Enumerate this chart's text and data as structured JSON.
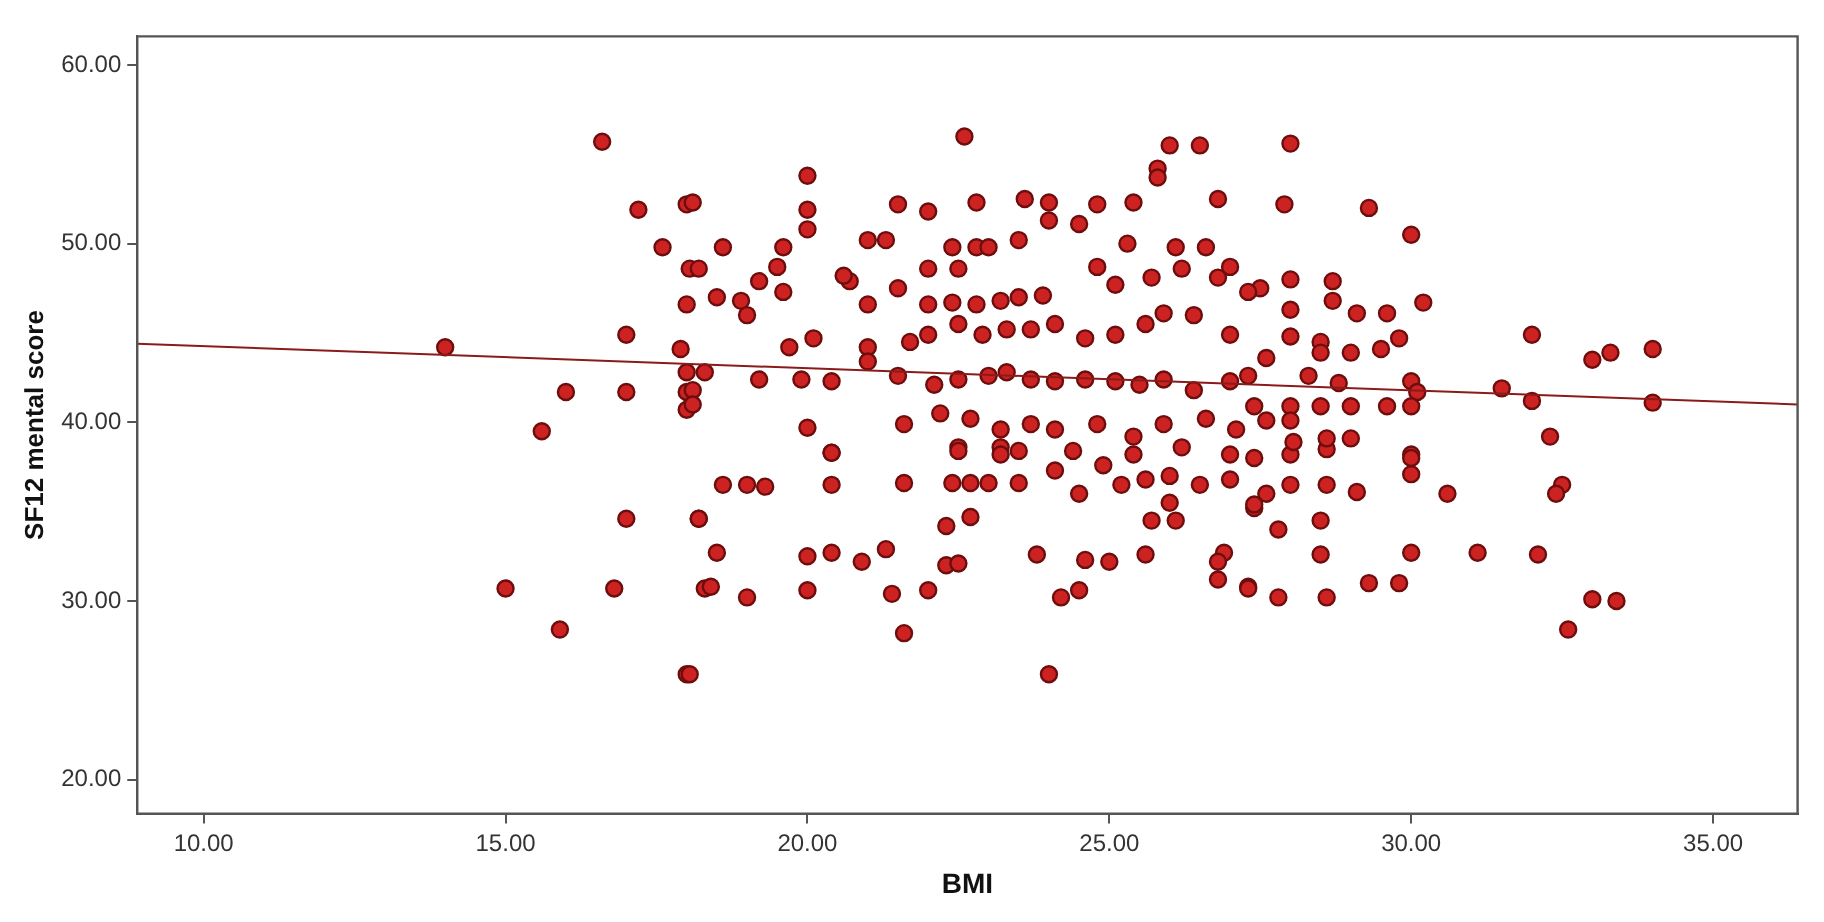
{
  "chart_data": {
    "type": "scatter",
    "xlabel": "BMI",
    "ylabel": "SF12 mental score",
    "xlim": [
      8.9,
      36.4
    ],
    "ylim": [
      18.1,
      61.6
    ],
    "xticks": [
      {
        "value": 10,
        "label": "10.00"
      },
      {
        "value": 15,
        "label": "15.00"
      },
      {
        "value": 20,
        "label": "20.00"
      },
      {
        "value": 25,
        "label": "25.00"
      },
      {
        "value": 30,
        "label": "30.00"
      },
      {
        "value": 35,
        "label": "35.00"
      }
    ],
    "yticks": [
      {
        "value": 20,
        "label": "20.00"
      },
      {
        "value": 30,
        "label": "30.00"
      },
      {
        "value": 40,
        "label": "40.00"
      },
      {
        "value": 50,
        "label": "50.00"
      },
      {
        "value": 60,
        "label": "60.00"
      }
    ],
    "grid": false,
    "legend": false,
    "marker": "circle",
    "series": [
      {
        "type": "scatter",
        "color": "#cc2222",
        "x": [
          14.0,
          16.6,
          17.2,
          18.0,
          17.6,
          18.05,
          18.0,
          17.0,
          17.9,
          18.0,
          16.0,
          17.0,
          18.0,
          18.0,
          15.6,
          17.0,
          18.2,
          15.0,
          16.8,
          18.3,
          15.9,
          18.0,
          20.4,
          18.6,
          19.0,
          19.3,
          20.4,
          21.6,
          22.4,
          22.7,
          23.0,
          23.5,
          18.2,
          22.3,
          22.7,
          18.5,
          20.0,
          20.4,
          20.9,
          21.3,
          22.3,
          22.5,
          23.8,
          24.6,
          25.0,
          25.6,
          26.9,
          26.8,
          26.8,
          27.3,
          18.4,
          19.0,
          20.0,
          21.4,
          22.0,
          24.2,
          24.5,
          21.6,
          24.0,
          18.05,
          30.0,
          30.0,
          30.6,
          32.5,
          32.4,
          27.8,
          28.5,
          28.5,
          30.0,
          31.1,
          32.1,
          29.3,
          29.8,
          27.3,
          27.8,
          28.6,
          33.0,
          33.4,
          32.6,
          28.0,
          28.6,
          27.4,
          28.6,
          29.1,
          28.0,
          27.6,
          27.4,
          28.0,
          27.9,
          29.3,
          30.0,
          30.2,
          32.0,
          33.0,
          33.3,
          34.0,
          34.0,
          31.5,
          32.0,
          32.3,
          30.0,
          30.1,
          28.0,
          28.7,
          27.5,
          28.0,
          28.7,
          29.1,
          29.6,
          29.8,
          29.5,
          29.0,
          28.5,
          28.5,
          28.0,
          27.6,
          28.3,
          28.8,
          27.4,
          28.0,
          28.5,
          29.0,
          29.6,
          30.0,
          27.6,
          28.0,
          28.05,
          28.6,
          29.0,
          30.0,
          22.6,
          26.0,
          26.5,
          25.8,
          25.8,
          20.0,
          20.0,
          20.0,
          18.1,
          21.5,
          22.0,
          22.8,
          23.6,
          24.0,
          24.8,
          25.4,
          26.8,
          24.0,
          24.5,
          21.0,
          21.3,
          22.4,
          22.8,
          23.0,
          23.5,
          18.6,
          19.6,
          18.2,
          19.5,
          19.2,
          20.7,
          20.6,
          21.5,
          22.0,
          22.5,
          18.5,
          18.9,
          19.6,
          21.0,
          22.0,
          22.4,
          22.8,
          23.2,
          23.5,
          23.9,
          19.0,
          24.8,
          25.3,
          26.1,
          26.6,
          27.0,
          25.1,
          25.7,
          26.2,
          26.8,
          22.0,
          22.5,
          22.9,
          23.3,
          23.7,
          24.1,
          24.6,
          25.1,
          25.6,
          25.9,
          26.4,
          27.0,
          27.3,
          19.7,
          20.1,
          21.0,
          21.7,
          18.3,
          19.2,
          19.9,
          20.4,
          21.0,
          21.5,
          22.1,
          22.5,
          23.0,
          23.3,
          23.7,
          24.1,
          24.6,
          25.1,
          25.5,
          25.9,
          26.4,
          27.0,
          27.3,
          21.6,
          22.2,
          22.7,
          23.2,
          23.7,
          24.1,
          24.8,
          25.4,
          25.9,
          26.6,
          27.1,
          20.4,
          22.5,
          23.2,
          24.4,
          25.4,
          26.2,
          27.0,
          22.5,
          23.2,
          23.5,
          24.1,
          24.5,
          24.9,
          25.2,
          25.6,
          26.0,
          26.0,
          25.7,
          26.1,
          26.5,
          27.0,
          27.4,
          18.1,
          18.1,
          20.0
        ],
        "values": [
          44.2,
          55.7,
          51.9,
          52.2,
          49.8,
          48.6,
          46.6,
          44.9,
          44.1,
          42.8,
          41.7,
          41.7,
          41.7,
          40.7,
          39.5,
          34.6,
          34.6,
          30.7,
          30.7,
          30.7,
          28.4,
          25.9,
          38.3,
          36.5,
          36.5,
          36.4,
          36.5,
          36.6,
          36.6,
          36.6,
          36.6,
          36.6,
          34.6,
          34.2,
          34.7,
          32.7,
          32.5,
          32.7,
          32.2,
          32.9,
          32.0,
          32.1,
          32.6,
          32.3,
          32.2,
          32.6,
          32.7,
          32.2,
          31.2,
          30.8,
          30.8,
          30.2,
          30.6,
          30.4,
          30.6,
          30.2,
          30.6,
          28.2,
          25.9,
          25.9,
          38.2,
          37.1,
          36.0,
          36.5,
          36.0,
          34.0,
          34.5,
          32.6,
          32.7,
          32.7,
          32.6,
          31.0,
          31.0,
          30.7,
          30.2,
          30.2,
          30.1,
          30.0,
          28.4,
          38.2,
          38.5,
          38.0,
          36.5,
          36.1,
          36.5,
          36.0,
          35.2,
          55.6,
          52.2,
          52.0,
          50.5,
          46.7,
          44.9,
          43.5,
          43.9,
          44.1,
          41.1,
          41.9,
          41.2,
          39.2,
          42.3,
          41.7,
          48.0,
          47.9,
          47.5,
          46.3,
          46.8,
          46.1,
          46.1,
          44.7,
          44.1,
          43.9,
          44.5,
          43.9,
          44.8,
          43.6,
          42.6,
          42.2,
          40.9,
          40.9,
          40.9,
          40.9,
          40.9,
          40.9,
          40.1,
          40.1,
          38.9,
          39.1,
          39.1,
          38.0,
          56.0,
          55.5,
          55.5,
          54.2,
          53.7,
          53.8,
          51.9,
          50.8,
          52.3,
          52.2,
          51.8,
          52.3,
          52.5,
          52.3,
          52.2,
          52.3,
          52.5,
          51.3,
          51.1,
          50.2,
          50.2,
          49.8,
          49.8,
          49.8,
          50.2,
          49.8,
          49.8,
          48.6,
          48.7,
          47.9,
          47.9,
          48.2,
          47.5,
          48.6,
          48.6,
          47.0,
          46.8,
          47.3,
          46.6,
          46.6,
          46.7,
          46.6,
          46.8,
          47.0,
          47.1,
          46.0,
          48.7,
          50.0,
          49.8,
          49.8,
          48.7,
          47.7,
          48.1,
          48.6,
          48.1,
          44.9,
          45.5,
          44.9,
          45.2,
          45.2,
          45.5,
          44.7,
          44.9,
          45.5,
          46.1,
          46.0,
          44.9,
          47.3,
          44.2,
          44.7,
          44.2,
          44.5,
          42.8,
          42.4,
          42.4,
          42.3,
          43.4,
          42.6,
          42.1,
          42.4,
          42.6,
          42.8,
          42.4,
          42.3,
          42.4,
          42.3,
          42.1,
          42.4,
          41.8,
          42.3,
          42.6,
          39.9,
          40.5,
          40.2,
          39.6,
          39.9,
          39.6,
          39.9,
          39.2,
          39.9,
          40.2,
          39.6,
          38.3,
          38.6,
          38.6,
          38.4,
          38.2,
          38.6,
          38.2,
          38.4,
          38.2,
          38.4,
          37.3,
          36.0,
          37.6,
          36.5,
          36.8,
          37.0,
          35.5,
          34.5,
          34.5,
          36.5,
          36.8,
          35.4,
          41.8,
          41.0,
          39.7
        ]
      },
      {
        "type": "line",
        "color": "#8b1a1a",
        "marker": "none",
        "x": [
          8.9,
          36.4
        ],
        "values": [
          44.4,
          41.0
        ]
      }
    ]
  }
}
